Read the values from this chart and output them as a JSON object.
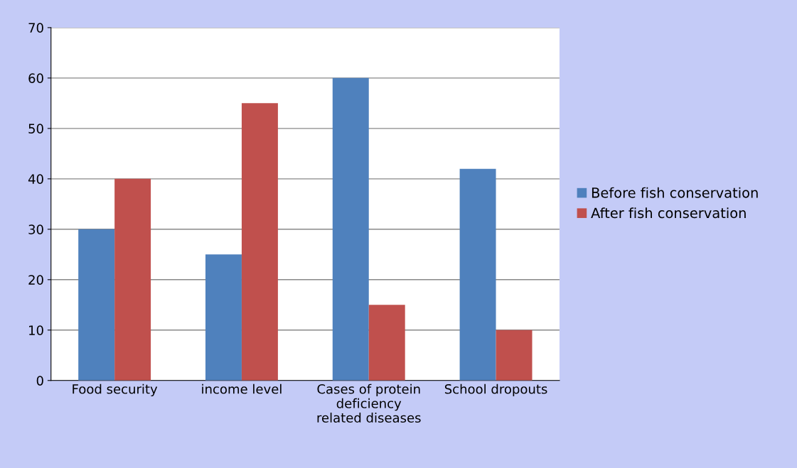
{
  "chart_data": {
    "type": "bar",
    "categories": [
      "Food security",
      "income level",
      "Cases of protein\ndeficiency\nrelated diseases",
      "School dropouts"
    ],
    "series": [
      {
        "name": "Before fish conservation",
        "color": "#4f81bd",
        "values": [
          30,
          25,
          60,
          42
        ]
      },
      {
        "name": "After fish conservation",
        "color": "#c0504d",
        "values": [
          40,
          55,
          15,
          10
        ]
      }
    ],
    "ylim": [
      0,
      70
    ],
    "yticks": [
      0,
      10,
      20,
      30,
      40,
      50,
      60,
      70
    ],
    "grid": "y",
    "legend": "right"
  }
}
